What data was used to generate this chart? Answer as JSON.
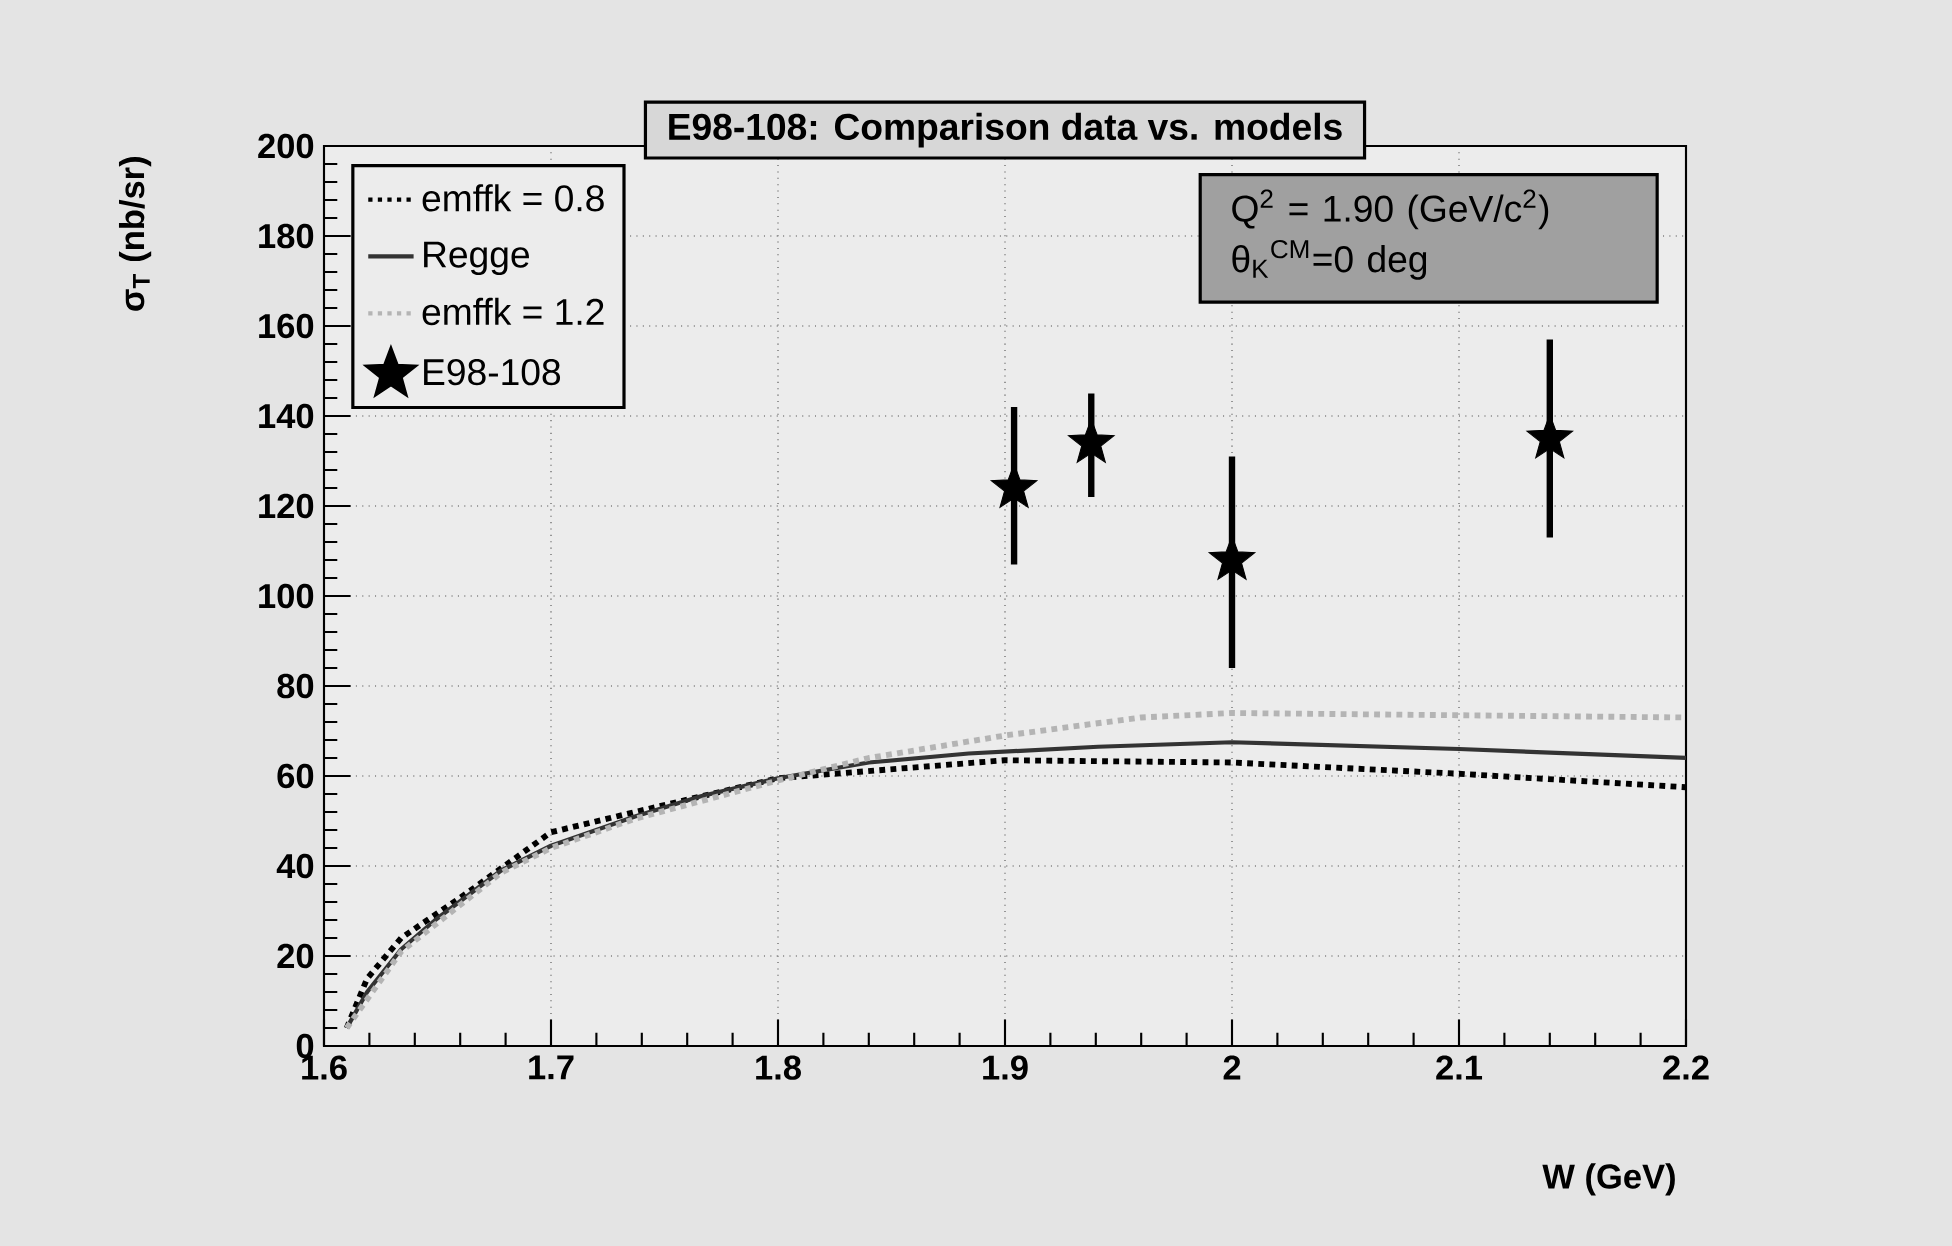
{
  "chart_data": {
    "type": "line",
    "title": "E98-108: Comparison data vs. models",
    "xlabel": "W (GeV)",
    "ylabel": "σ$_{T}$ (nb/sr)",
    "annotations": [
      "Q$^{2}$ = 1.90 (GeV/c$^{2}$)",
      "θ$_{K}$$^{CM}$=0 deg"
    ],
    "xlim": [
      1.6,
      2.2
    ],
    "ylim": [
      0,
      200
    ],
    "xticks": [
      1.6,
      1.7,
      1.8,
      1.9,
      2,
      2.1,
      2.2
    ],
    "yticks": [
      0,
      20,
      40,
      60,
      80,
      100,
      120,
      140,
      160,
      180,
      200
    ],
    "grid": true,
    "legend": "top left",
    "series": [
      {
        "name": "emffk = 0.8",
        "color": "#000000",
        "line_style": "dotted",
        "x": [
          1.61,
          1.619,
          1.634,
          1.663,
          1.7,
          1.737,
          1.8,
          1.9,
          2.0,
          2.1,
          2.2
        ],
        "values": [
          4,
          15,
          24,
          34,
          47.5,
          52,
          59.5,
          63.5,
          63,
          60.5,
          57.5
        ]
      },
      {
        "name": "Regge",
        "color": "#333333",
        "line_style": "solid",
        "x": [
          1.61,
          1.619,
          1.634,
          1.649,
          1.678,
          1.7,
          1.737,
          1.766,
          1.8,
          1.84,
          1.884,
          1.941,
          2.0,
          2.1,
          2.2
        ],
        "values": [
          4,
          12,
          21.5,
          28,
          39,
          44.5,
          51,
          55.5,
          59.5,
          63,
          65,
          66.5,
          67.5,
          66,
          64
        ]
      },
      {
        "name": "emffk = 1.2",
        "color": "#b4b4b4",
        "line_style": "dotted",
        "x": [
          1.61,
          1.634,
          1.678,
          1.7,
          1.737,
          1.8,
          1.84,
          1.9,
          1.96,
          2.0,
          2.1,
          2.2
        ],
        "values": [
          4,
          21,
          38.5,
          44,
          50.5,
          59,
          64,
          69,
          73,
          74,
          73.5,
          73
        ]
      },
      {
        "name": "E98-108",
        "type": "scatter",
        "color": "#000000",
        "marker": "star",
        "x": [
          1.904,
          1.938,
          2.0,
          2.14
        ],
        "values": [
          124,
          134,
          108,
          135
        ],
        "errors": [
          [
            107,
            142
          ],
          [
            122,
            145
          ],
          [
            84,
            131
          ],
          [
            113,
            157
          ]
        ]
      }
    ]
  }
}
